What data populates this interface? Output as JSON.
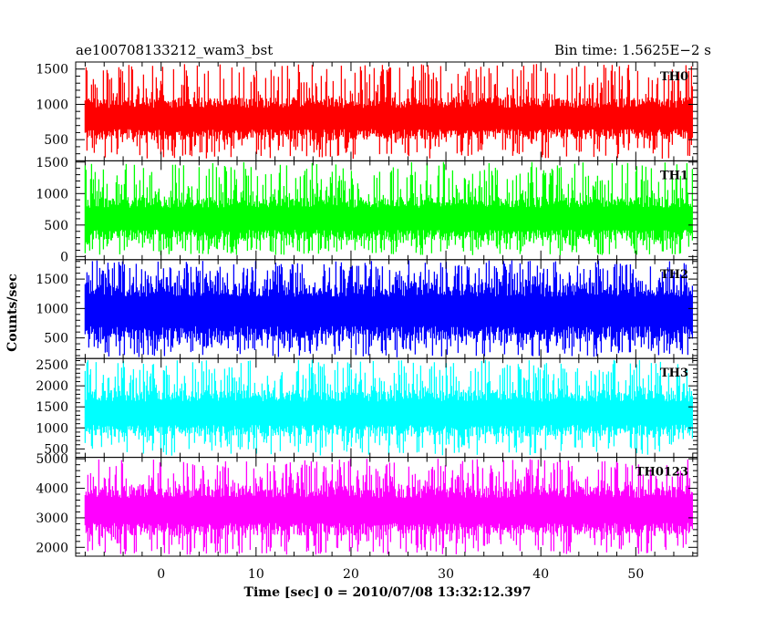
{
  "chart_data": {
    "type": "line",
    "title_left": "ae100708133212_wam3_bst",
    "title_right": "Bin time: 1.5625E−2 s",
    "xlabel": "Time [sec] 0 = 2010/07/08 13:32:12.397",
    "ylabel": "Counts/sec",
    "xlim": [
      -9,
      56.5
    ],
    "x_data_range": [
      -8,
      56
    ],
    "x_ticks": [
      0,
      10,
      20,
      30,
      40,
      50
    ],
    "x_tick_labels": [
      "0",
      "10",
      "20",
      "30",
      "40",
      "50"
    ],
    "grid": false,
    "panels": [
      {
        "label": "TH0",
        "color": "#ff0000",
        "ylim": [
          200,
          1600
        ],
        "y_ticks": [
          500,
          1000,
          1500
        ],
        "y_tick_labels": [
          "500",
          "1000",
          "1500"
        ],
        "typical_range": [
          500,
          1100
        ],
        "extreme_range": [
          230,
          1580
        ]
      },
      {
        "label": "TH1",
        "color": "#00ff00",
        "ylim": [
          -50,
          1520
        ],
        "y_ticks": [
          0,
          500,
          1000,
          1500
        ],
        "y_tick_labels": [
          "0",
          "500",
          "1000",
          "1500"
        ],
        "typical_range": [
          250,
          950
        ],
        "extreme_range": [
          20,
          1500
        ]
      },
      {
        "label": "TH2",
        "color": "#0000ff",
        "ylim": [
          150,
          1830
        ],
        "y_ticks": [
          500,
          1000,
          1500
        ],
        "y_tick_labels": [
          "500",
          "1000",
          "1500"
        ],
        "typical_range": [
          450,
          1450
        ],
        "extreme_range": [
          170,
          1820
        ]
      },
      {
        "label": "TH3",
        "color": "#00ffff",
        "ylim": [
          300,
          2650
        ],
        "y_ticks": [
          500,
          1000,
          1500,
          2000,
          2500
        ],
        "y_tick_labels": [
          "500",
          "1000",
          "1500",
          "2000",
          "2500"
        ],
        "typical_range": [
          800,
          1900
        ],
        "extreme_range": [
          340,
          2620
        ]
      },
      {
        "label": "TH0123",
        "color": "#ff00ff",
        "ylim": [
          1700,
          5050
        ],
        "y_ticks": [
          2000,
          3000,
          4000,
          5000
        ],
        "y_tick_labels": [
          "2000",
          "3000",
          "4000",
          "5000"
        ],
        "typical_range": [
          2400,
          4100
        ],
        "extreme_range": [
          1750,
          5000
        ]
      }
    ]
  }
}
